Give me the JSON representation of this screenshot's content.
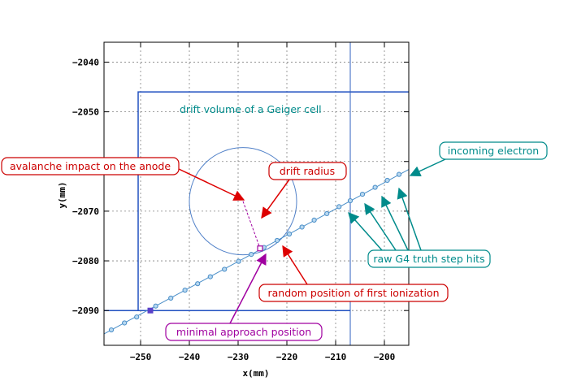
{
  "chart_data": {
    "type": "scatter",
    "xlabel": "x(mm)",
    "ylabel": "y(mm)",
    "xlim": [
      -257.5,
      -195
    ],
    "ylim": [
      -2097,
      -2036
    ],
    "x_ticks": [
      -250,
      -240,
      -230,
      -220,
      -210,
      -200
    ],
    "y_ticks": [
      -2040,
      -2050,
      -2060,
      -2070,
      -2080,
      -2090
    ],
    "grid": true,
    "track_line": {
      "x": [
        -257.5,
        -195
      ],
      "y": [
        -2094.7,
        -2061.6
      ]
    },
    "step_hits": {
      "x": [
        -256,
        -253.3,
        -250.8,
        -246.9,
        -243.8,
        -240.9,
        -238.3,
        -235.7,
        -232.8,
        -229.9,
        -227.3,
        -224.7,
        -222,
        -219.5,
        -216.9,
        -214.4,
        -211.8,
        -209.3,
        -207,
        -204.5,
        -201.9,
        -199.4,
        -197
      ],
      "y": [
        -2093.9,
        -2092.5,
        -2091.3,
        -2089.1,
        -2087.5,
        -2085.9,
        -2084.6,
        -2083.2,
        -2081.7,
        -2080.1,
        -2078.7,
        -2077.3,
        -2075.9,
        -2074.6,
        -2073.2,
        -2071.8,
        -2070.5,
        -2069.1,
        -2067.9,
        -2066.6,
        -2065.2,
        -2063.8,
        -2062.6
      ]
    },
    "special_points": {
      "filled_square": {
        "x": -248,
        "y": -2090
      },
      "min_approach": {
        "x": -225.5,
        "y": -2077.5
      }
    },
    "drift_circle": {
      "cx": -229,
      "cy": -2068,
      "r": 11
    },
    "anode": {
      "x": -229,
      "y": -2068
    },
    "cell_box": {
      "x0": -250.5,
      "x1": -195,
      "y0": -2090,
      "y1": -2046
    },
    "lines": {
      "vertical": [
        -207
      ],
      "horizontal": [
        -2090
      ]
    },
    "annotations": [
      {
        "id": "drift-volume",
        "text": "drift volume of a Geiger cell",
        "color": "#008b8b",
        "boxed": false
      },
      {
        "id": "incoming-electron",
        "text": "incoming electron",
        "color": "#008b8b",
        "boxed": true
      },
      {
        "id": "avalanche-impact",
        "text": "avalanche impact on the anode",
        "color": "#cc0000",
        "boxed": true
      },
      {
        "id": "drift-radius",
        "text": "drift radius",
        "color": "#cc0000",
        "boxed": true
      },
      {
        "id": "raw-step-hits",
        "text": "raw G4 truth step hits",
        "color": "#008b8b",
        "boxed": true
      },
      {
        "id": "first-ionization",
        "text": "random position of first ionization",
        "color": "#cc0000",
        "boxed": true
      },
      {
        "id": "min-approach",
        "text": "minimal approach position",
        "color": "#a000a0",
        "boxed": true
      }
    ],
    "colors": {
      "track": "#4a8ec8",
      "frame": "#3060c0",
      "cell": "#2050c0",
      "circle": "#5080c8",
      "grid": "#808080",
      "red": "#dd0000",
      "teal": "#008b8b",
      "magenta": "#a000a0",
      "purple_square": "#5a40c8"
    }
  }
}
